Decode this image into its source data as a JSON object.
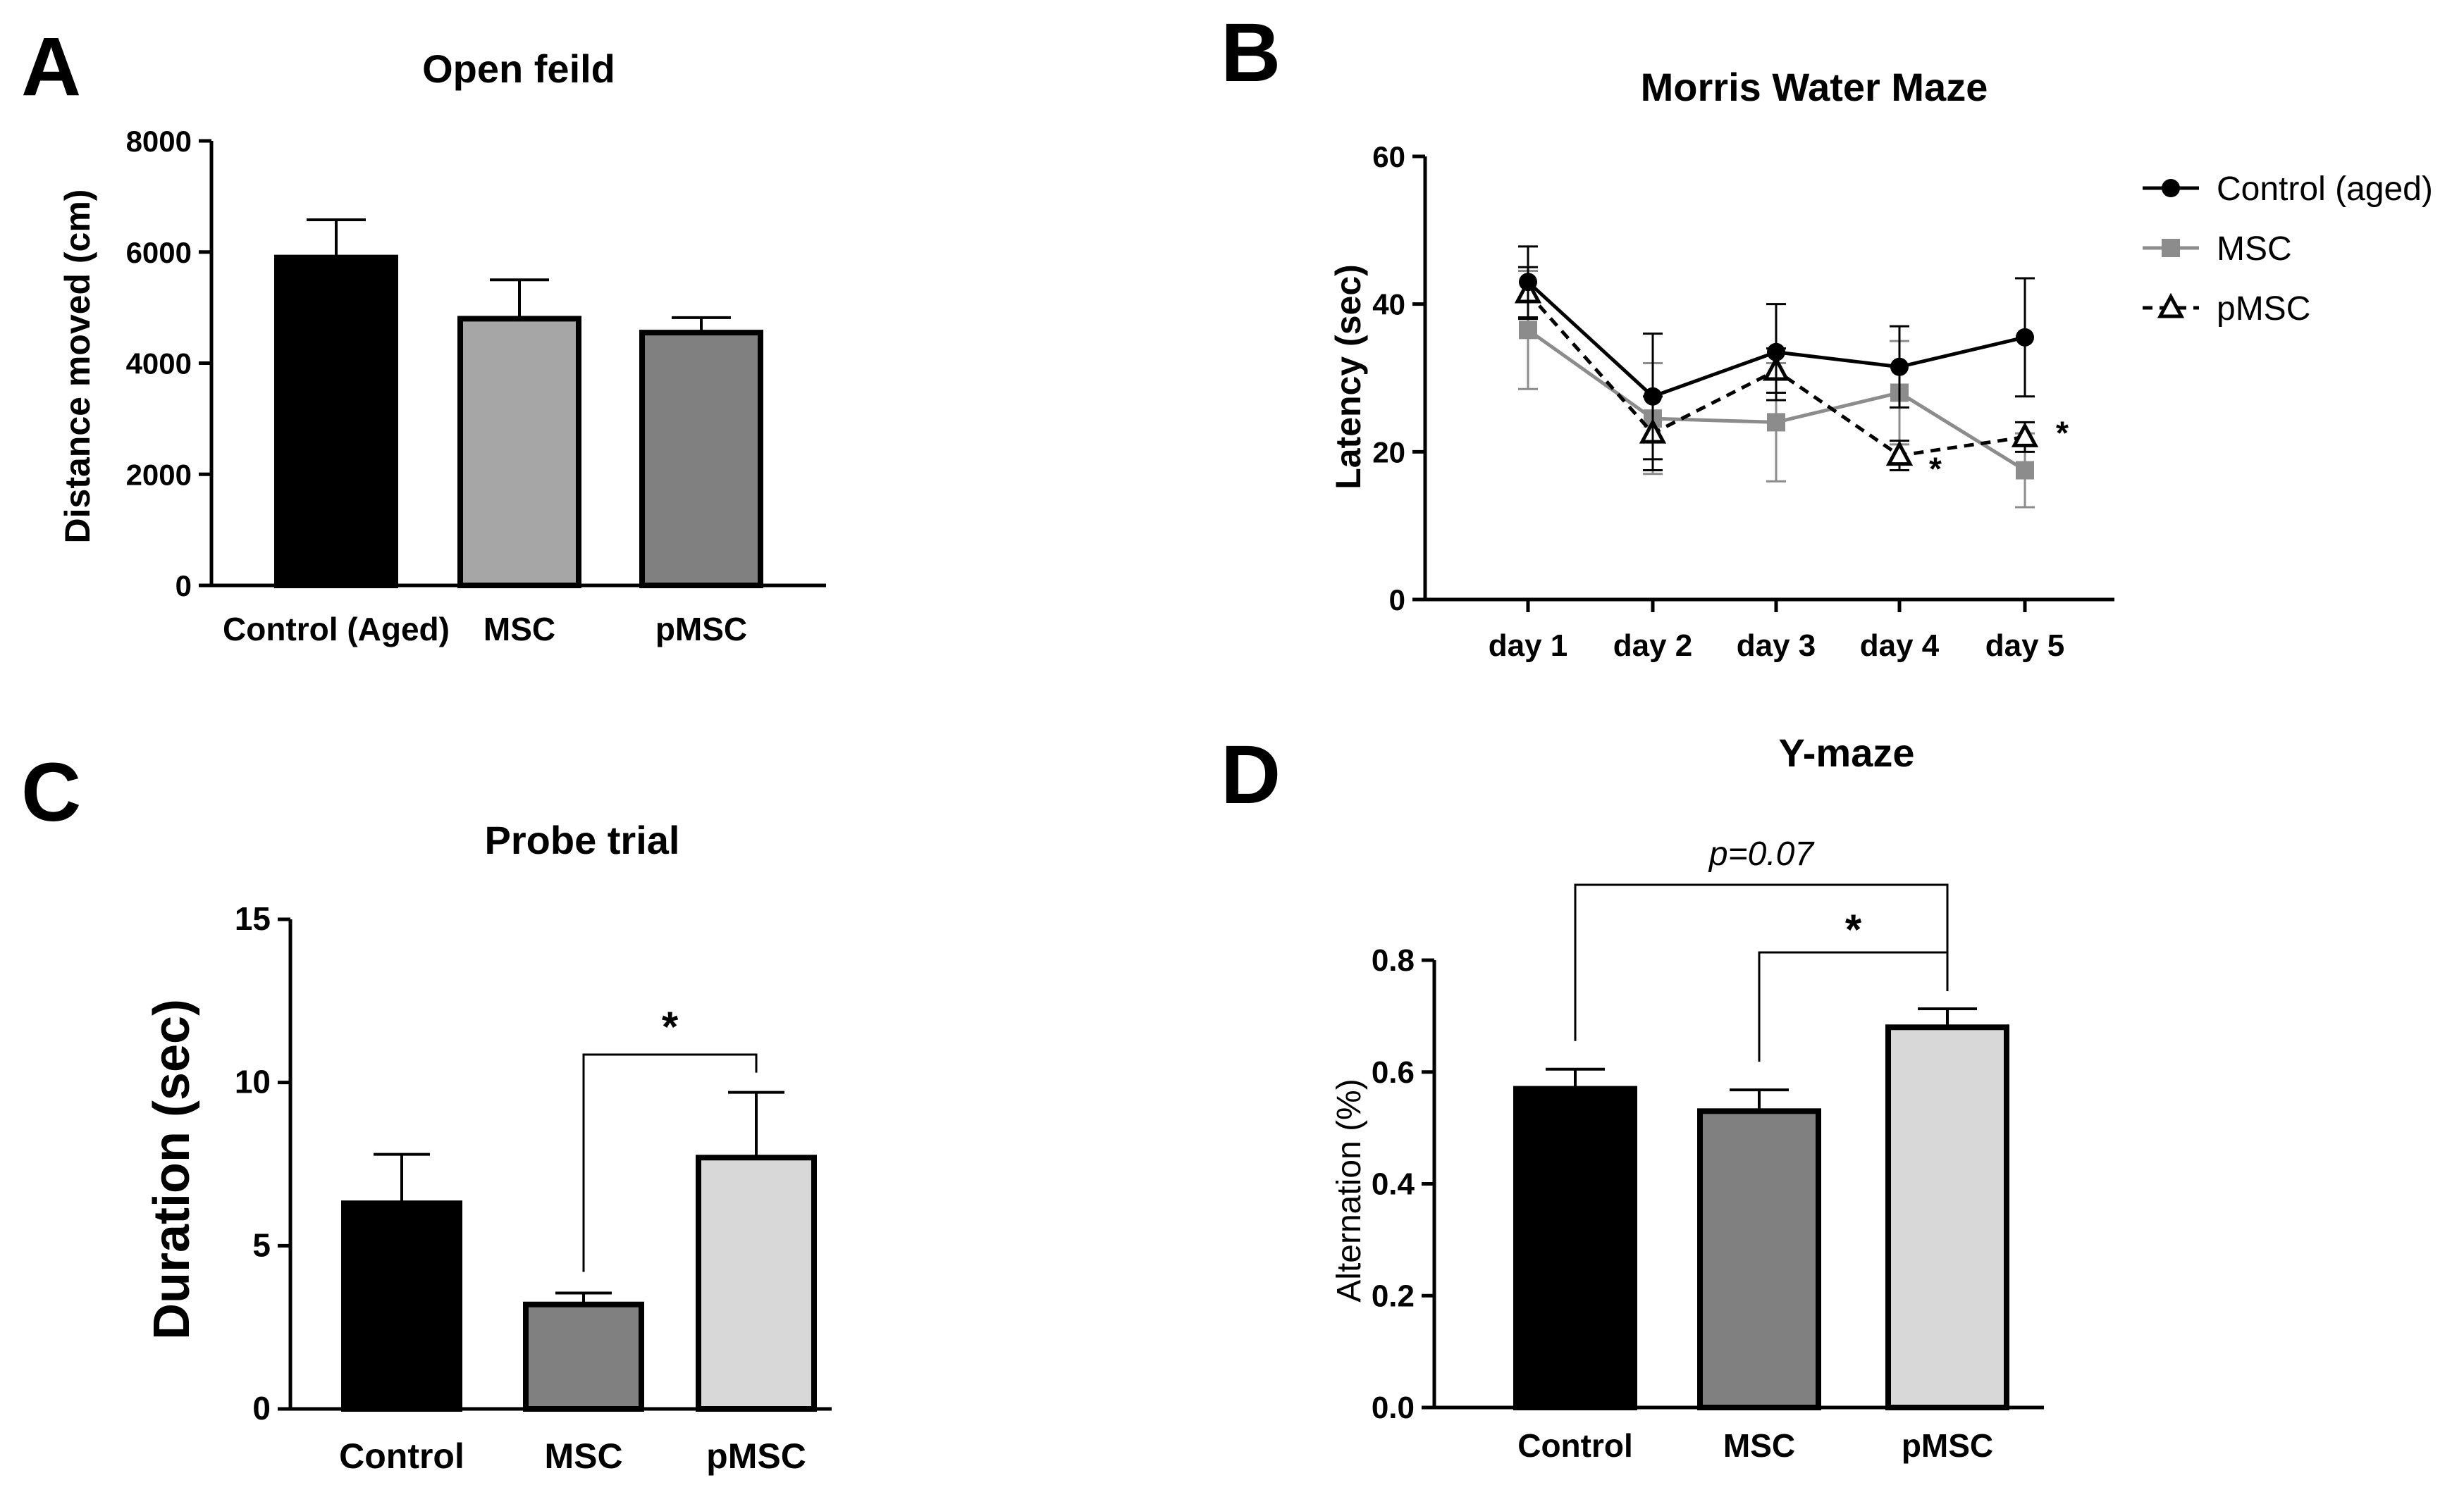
{
  "colors": {
    "black": "#000000",
    "mid_gray": "#a6a6a6",
    "dark_gray": "#808080",
    "light_gray": "#d8d8d8",
    "line_gray": "#8c8c8c"
  },
  "chart_data": [
    {
      "id": "A",
      "panel_letter": "A",
      "type": "bar",
      "title": "Open feild",
      "ylabel": "Distance moved (cm)",
      "xlabel": "",
      "categories": [
        "Control (Aged)",
        "MSC",
        "pMSC"
      ],
      "values": [
        5900,
        4800,
        4550
      ],
      "errors": [
        680,
        700,
        270
      ],
      "bar_colors": [
        "#000000",
        "#a6a6a6",
        "#808080"
      ],
      "ylim": [
        0,
        8000
      ],
      "yticks": [
        0,
        2000,
        4000,
        6000,
        8000
      ],
      "ytick_labels": [
        "0",
        "2000",
        "4000",
        "6000",
        "8000"
      ],
      "grid": false
    },
    {
      "id": "B",
      "panel_letter": "B",
      "type": "line",
      "title": "Morris Water Maze",
      "ylabel": "Latency (sec)",
      "xlabel": "",
      "x": [
        "day 1",
        "day 2",
        "day 3",
        "day 4",
        "day 5"
      ],
      "ylim": [
        0,
        60
      ],
      "yticks": [
        0,
        20,
        40,
        60
      ],
      "ytick_labels": [
        "0",
        "20",
        "40",
        "60"
      ],
      "legend_position": "top-right",
      "grid": false,
      "series": [
        {
          "name": "Control (aged)",
          "marker": "circle",
          "dash": "solid",
          "color": "#000000",
          "values": [
            43,
            27.5,
            33.5,
            31.5,
            35.5
          ],
          "errors": [
            4.8,
            8.5,
            6.5,
            5.5,
            8
          ]
        },
        {
          "name": "MSC",
          "marker": "square",
          "dash": "solid",
          "color": "#8c8c8c",
          "values": [
            36.5,
            24.5,
            24,
            28,
            17.5
          ],
          "errors": [
            8,
            7.5,
            8,
            7,
            5
          ]
        },
        {
          "name": "pMSC",
          "marker": "triangle",
          "dash": "dashed",
          "color": "#000000",
          "values": [
            41.5,
            22.5,
            31,
            19.5,
            22
          ],
          "errors": [
            3.5,
            5,
            3,
            2,
            2
          ]
        }
      ],
      "annotations": [
        {
          "text": "*",
          "x": "day 4"
        },
        {
          "text": "*",
          "x": "day 5"
        }
      ]
    },
    {
      "id": "C",
      "panel_letter": "C",
      "type": "bar",
      "title": "Probe trial",
      "ylabel": "Duration (sec)",
      "xlabel": "",
      "categories": [
        "Control",
        "MSC",
        "pMSC"
      ],
      "values": [
        6.3,
        3.2,
        7.7
      ],
      "errors": [
        1.5,
        0.35,
        2.0
      ],
      "bar_colors": [
        "#000000",
        "#808080",
        "#d8d8d8"
      ],
      "ylim": [
        0,
        15
      ],
      "yticks": [
        0,
        5,
        10,
        15
      ],
      "ytick_labels": [
        "0",
        "5",
        "10",
        "15"
      ],
      "grid": false,
      "significance": [
        {
          "from": "MSC",
          "to": "pMSC",
          "label": "*"
        }
      ]
    },
    {
      "id": "D",
      "panel_letter": "D",
      "type": "bar",
      "title": "Y-maze",
      "ylabel": "Alternation (%)",
      "xlabel": "",
      "categories": [
        "Control",
        "MSC",
        "pMSC"
      ],
      "values": [
        0.57,
        0.53,
        0.68
      ],
      "errors": [
        0.035,
        0.038,
        0.033
      ],
      "bar_colors": [
        "#000000",
        "#808080",
        "#d8d8d8"
      ],
      "ylim": [
        0,
        0.8
      ],
      "yticks": [
        0,
        0.2,
        0.4,
        0.6,
        0.8
      ],
      "ytick_labels": [
        "0.0",
        "0.2",
        "0.4",
        "0.6",
        "0.8"
      ],
      "grid": false,
      "significance": [
        {
          "from": "Control",
          "to": "pMSC",
          "label": "p=0.07"
        },
        {
          "from": "MSC",
          "to": "pMSC",
          "label": "*"
        }
      ]
    }
  ]
}
